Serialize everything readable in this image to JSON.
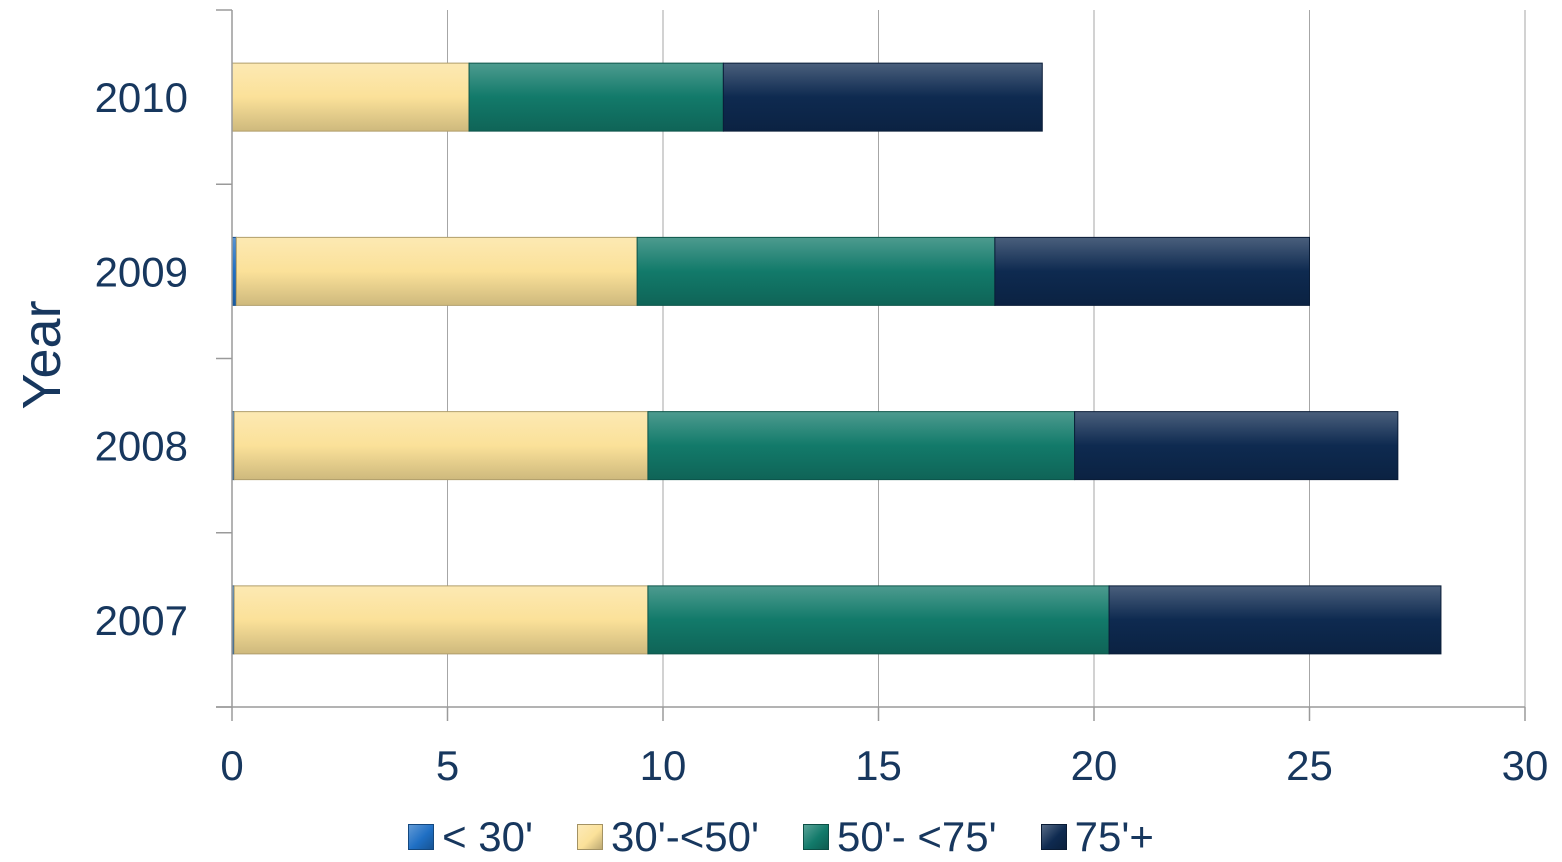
{
  "chart_data": {
    "type": "bar",
    "orientation": "horizontal",
    "stacked": true,
    "categories": [
      "2007",
      "2008",
      "2009",
      "2010"
    ],
    "series": [
      {
        "name": "< 30'",
        "color": "#1f6fc4",
        "values": [
          0.05,
          0.05,
          0.1,
          0
        ]
      },
      {
        "name": "30'-<50'",
        "color": "#fbe199",
        "values": [
          9.6,
          9.6,
          9.3,
          5.5
        ]
      },
      {
        "name": "50'- <75'",
        "color": "#127a6a",
        "values": [
          10.7,
          9.9,
          8.3,
          5.9
        ]
      },
      {
        "name": "75'+",
        "color": "#0e2a50",
        "values": [
          7.7,
          7.5,
          7.3,
          7.4
        ]
      }
    ],
    "xlim": [
      0,
      30
    ],
    "xticks": [
      "0",
      "5",
      "10",
      "15",
      "20",
      "25",
      "30"
    ],
    "ylabel": "Year",
    "xlabel": "",
    "grid": "vertical",
    "legend": "bottom"
  }
}
